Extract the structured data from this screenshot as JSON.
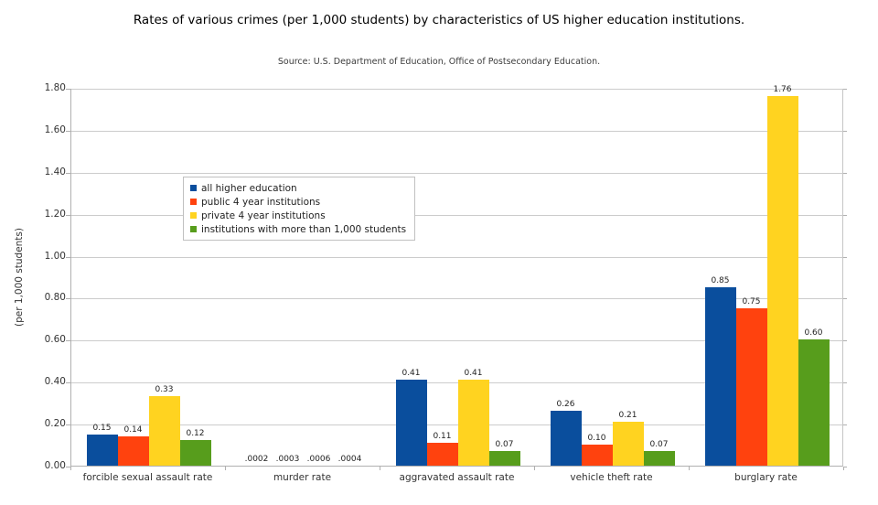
{
  "chart_data": {
    "type": "bar",
    "title": "Rates of various crimes (per 1,000 students) by characteristics of US higher education institutions.",
    "subtitle": "Source: U.S. Department of Education, Office of Postsecondary Education.",
    "ylabel": "(per 1,000 students)",
    "xlabel": "",
    "categories": [
      "forcible sexual assault rate",
      "murder rate",
      "aggravated assault rate",
      "vehicle theft rate",
      "burglary rate"
    ],
    "series": [
      {
        "name": "all higher education",
        "color": "#0a4e9d",
        "values": [
          0.15,
          0.0002,
          0.41,
          0.26,
          0.85
        ],
        "value_labels": [
          "0.15",
          ".0002",
          "0.41",
          "0.26",
          "0.85"
        ]
      },
      {
        "name": "public 4 year institutions",
        "color": "#ff420e",
        "values": [
          0.14,
          0.0003,
          0.11,
          0.1,
          0.75
        ],
        "value_labels": [
          "0.14",
          ".0003",
          "0.11",
          "0.10",
          "0.75"
        ]
      },
      {
        "name": "private 4 year institutions",
        "color": "#ffd320",
        "values": [
          0.33,
          0.0006,
          0.41,
          0.21,
          1.76
        ],
        "value_labels": [
          "0.33",
          ".0006",
          "0.41",
          "0.21",
          "1.76"
        ]
      },
      {
        "name": "institutions with more than 1,000 students",
        "color": "#579d1c",
        "values": [
          0.12,
          0.0004,
          0.07,
          0.07,
          0.6
        ],
        "value_labels": [
          "0.12",
          ".0004",
          "0.07",
          "0.07",
          "0.60"
        ]
      }
    ],
    "ylim": [
      0,
      1.8
    ],
    "ytick_interval": 0.2,
    "ytick_labels": [
      "1.80",
      "1.60",
      "1.40",
      "1.20",
      "1.00",
      "0.80",
      "0.60",
      "0.40",
      "0.20",
      "0.00"
    ],
    "grid": true,
    "legend_position": "inside-upper-left",
    "bar_value_labels_shown": true
  },
  "ui": {
    "axis_color": "#b0b0b0",
    "gridline_color": "#cccccc",
    "background_color": "#ffffff"
  }
}
